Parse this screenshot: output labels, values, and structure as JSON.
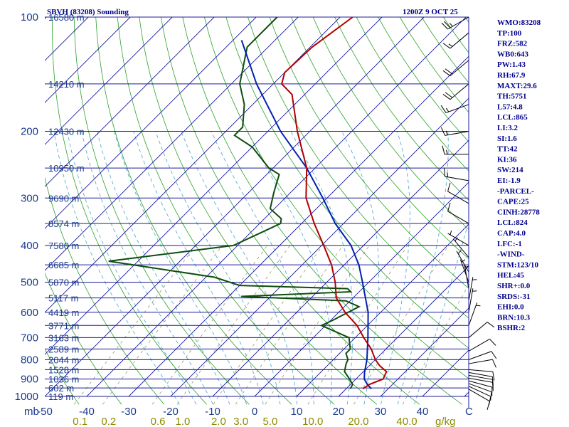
{
  "colors": {
    "isobar": "#1c1c9a",
    "isotherm": "#1c1c9a",
    "dry_adiabat": "#2aa12a",
    "moist_adiabat": "#5aaed0",
    "mixing_ratio": "#9a9a6a",
    "temperature": "#b00000",
    "dewpoint": "#0d4d0d",
    "parcel": "#0020b0",
    "text": "#00008b"
  },
  "chart_data": {
    "type": "skew-t sounding",
    "title": "SBVH (83208) Sounding",
    "datetime": "1200Z  9 OCT 25",
    "y_axis_unit": "mb",
    "x_axis_unit": "C",
    "mixing_ratio_unit": "g/kg",
    "pressure_levels": [
      {
        "p": 100,
        "label": "100"
      },
      {
        "p": 200,
        "label": "200"
      },
      {
        "p": 300,
        "label": "300"
      },
      {
        "p": 400,
        "label": "400"
      },
      {
        "p": 500,
        "label": "500"
      },
      {
        "p": 600,
        "label": "600"
      },
      {
        "p": 700,
        "label": "700"
      },
      {
        "p": 800,
        "label": "800"
      },
      {
        "p": 900,
        "label": "900"
      },
      {
        "p": 1000,
        "label": "1000"
      }
    ],
    "height_labels": [
      {
        "p": 100,
        "label": "16580 m"
      },
      {
        "p": 150,
        "label": "14210 m"
      },
      {
        "p": 200,
        "label": "12430 m"
      },
      {
        "p": 250,
        "label": "10950 m"
      },
      {
        "p": 300,
        "label": "9690 m"
      },
      {
        "p": 350,
        "label": "8574 m"
      },
      {
        "p": 400,
        "label": "7580 m"
      },
      {
        "p": 450,
        "label": "6685 m"
      },
      {
        "p": 500,
        "label": "5870 m"
      },
      {
        "p": 550,
        "label": "5117 m"
      },
      {
        "p": 600,
        "label": "4419 m"
      },
      {
        "p": 650,
        "label": "3771 m"
      },
      {
        "p": 700,
        "label": "3163 m"
      },
      {
        "p": 750,
        "label": "2589 m"
      },
      {
        "p": 800,
        "label": "2044 m"
      },
      {
        "p": 850,
        "label": "1528 m"
      },
      {
        "p": 900,
        "label": "1036 m"
      },
      {
        "p": 950,
        "label": "602 m"
      },
      {
        "p": 1000,
        "label": "119 m"
      }
    ],
    "temp_ticks": [
      {
        "t": -50,
        "label": "-50"
      },
      {
        "t": -40,
        "label": "-40"
      },
      {
        "t": -30,
        "label": "-30"
      },
      {
        "t": -20,
        "label": "-20"
      },
      {
        "t": -10,
        "label": "-10"
      },
      {
        "t": 0,
        "label": "0"
      },
      {
        "t": 10,
        "label": "10"
      },
      {
        "t": 20,
        "label": "20"
      },
      {
        "t": 30,
        "label": "30"
      },
      {
        "t": 40,
        "label": "40"
      }
    ],
    "mixing_ratio_ticks": [
      {
        "w": 0.1,
        "label": "0.1"
      },
      {
        "w": 0.2,
        "label": "0.2"
      },
      {
        "w": 0.6,
        "label": "0.6"
      },
      {
        "w": 1.0,
        "label": "1.0"
      },
      {
        "w": 2.0,
        "label": "2.0"
      },
      {
        "w": 3.0,
        "label": "3.0"
      },
      {
        "w": 5.0,
        "label": "5.0"
      },
      {
        "w": 10.0,
        "label": "10.0"
      },
      {
        "w": 20.0,
        "label": "20.0"
      },
      {
        "w": 40.0,
        "label": "40.0"
      }
    ],
    "temperature_profile": [
      {
        "p": 955,
        "t": 24.0
      },
      {
        "p": 930,
        "t": 24.5
      },
      {
        "p": 900,
        "t": 26.5
      },
      {
        "p": 860,
        "t": 25.5
      },
      {
        "p": 830,
        "t": 22.5
      },
      {
        "p": 800,
        "t": 20.0
      },
      {
        "p": 750,
        "t": 16.5
      },
      {
        "p": 700,
        "t": 12.0
      },
      {
        "p": 650,
        "t": 7.5
      },
      {
        "p": 600,
        "t": 1.5
      },
      {
        "p": 550,
        "t": -4.0
      },
      {
        "p": 500,
        "t": -8.0
      },
      {
        "p": 450,
        "t": -13.0
      },
      {
        "p": 400,
        "t": -19.5
      },
      {
        "p": 350,
        "t": -27.0
      },
      {
        "p": 300,
        "t": -35.0
      },
      {
        "p": 250,
        "t": -42.0
      },
      {
        "p": 200,
        "t": -53.0
      },
      {
        "p": 160,
        "t": -63.0
      },
      {
        "p": 150,
        "t": -68.0
      },
      {
        "p": 140,
        "t": -70.0
      },
      {
        "p": 120,
        "t": -69.5
      },
      {
        "p": 100,
        "t": -67.0
      }
    ],
    "dewpoint_profile": [
      {
        "p": 955,
        "t": 21.0
      },
      {
        "p": 930,
        "t": 20.5
      },
      {
        "p": 900,
        "t": 18.5
      },
      {
        "p": 860,
        "t": 15.5
      },
      {
        "p": 820,
        "t": 14.0
      },
      {
        "p": 800,
        "t": 13.5
      },
      {
        "p": 770,
        "t": 11.5
      },
      {
        "p": 750,
        "t": 11.5
      },
      {
        "p": 700,
        "t": 8.5
      },
      {
        "p": 650,
        "t": -1.0
      },
      {
        "p": 630,
        "t": 0.5
      },
      {
        "p": 580,
        "t": 3.5
      },
      {
        "p": 560,
        "t": -1.0
      },
      {
        "p": 545,
        "t": -27.0
      },
      {
        "p": 530,
        "t": -2.0
      },
      {
        "p": 520,
        "t": -3.5
      },
      {
        "p": 510,
        "t": -30.0
      },
      {
        "p": 485,
        "t": -38.0
      },
      {
        "p": 440,
        "t": -67.0
      },
      {
        "p": 400,
        "t": -41.0
      },
      {
        "p": 350,
        "t": -35.0
      },
      {
        "p": 340,
        "t": -36.0
      },
      {
        "p": 320,
        "t": -41.0
      },
      {
        "p": 290,
        "t": -44.0
      },
      {
        "p": 260,
        "t": -47.0
      },
      {
        "p": 250,
        "t": -51.0
      },
      {
        "p": 220,
        "t": -60.0
      },
      {
        "p": 205,
        "t": -67.0
      },
      {
        "p": 195,
        "t": -67.0
      },
      {
        "p": 170,
        "t": -72.0
      },
      {
        "p": 150,
        "t": -78.0
      },
      {
        "p": 120,
        "t": -85.0
      },
      {
        "p": 110,
        "t": -85.0
      },
      {
        "p": 100,
        "t": -85.0
      }
    ],
    "parcel_profile": [
      {
        "p": 955,
        "t": 26.0
      },
      {
        "p": 930,
        "t": 24.0
      },
      {
        "p": 900,
        "t": 22.0
      },
      {
        "p": 865,
        "t": 20.5
      },
      {
        "p": 800,
        "t": 18.0
      },
      {
        "p": 700,
        "t": 13.0
      },
      {
        "p": 600,
        "t": 7.0
      },
      {
        "p": 500,
        "t": -1.5
      },
      {
        "p": 450,
        "t": -6.5
      },
      {
        "p": 400,
        "t": -13.0
      },
      {
        "p": 350,
        "t": -22.0
      },
      {
        "p": 300,
        "t": -31.0
      },
      {
        "p": 250,
        "t": -42.0
      },
      {
        "p": 200,
        "t": -57.0
      },
      {
        "p": 150,
        "t": -74.0
      },
      {
        "p": 115,
        "t": -88.0
      }
    ],
    "wind_barbs": [
      {
        "p": 957,
        "dir": 120,
        "spd": 10
      },
      {
        "p": 940,
        "dir": 115,
        "spd": 10
      },
      {
        "p": 925,
        "dir": 110,
        "spd": 10
      },
      {
        "p": 910,
        "dir": 105,
        "spd": 10
      },
      {
        "p": 895,
        "dir": 100,
        "spd": 10
      },
      {
        "p": 880,
        "dir": 100,
        "spd": 10
      },
      {
        "p": 865,
        "dir": 100,
        "spd": 10
      },
      {
        "p": 850,
        "dir": 95,
        "spd": 10
      },
      {
        "p": 820,
        "dir": 80,
        "spd": 10
      },
      {
        "p": 800,
        "dir": 70,
        "spd": 10
      },
      {
        "p": 760,
        "dir": 60,
        "spd": 10
      },
      {
        "p": 700,
        "dir": 50,
        "spd": 10
      },
      {
        "p": 650,
        "dir": 20,
        "spd": 5
      },
      {
        "p": 600,
        "dir": 10,
        "spd": 5
      },
      {
        "p": 560,
        "dir": 10,
        "spd": 5
      },
      {
        "p": 520,
        "dir": 350,
        "spd": 5
      },
      {
        "p": 500,
        "dir": 340,
        "spd": 5
      },
      {
        "p": 470,
        "dir": 330,
        "spd": 5
      },
      {
        "p": 430,
        "dir": 320,
        "spd": 5
      },
      {
        "p": 400,
        "dir": 300,
        "spd": 5
      },
      {
        "p": 350,
        "dir": 300,
        "spd": 10
      },
      {
        "p": 310,
        "dir": 300,
        "spd": 10
      },
      {
        "p": 270,
        "dir": 280,
        "spd": 15
      },
      {
        "p": 230,
        "dir": 270,
        "spd": 15
      },
      {
        "p": 200,
        "dir": 260,
        "spd": 15
      },
      {
        "p": 170,
        "dir": 250,
        "spd": 15
      },
      {
        "p": 150,
        "dir": 230,
        "spd": 20
      },
      {
        "p": 130,
        "dir": 230,
        "spd": 20
      },
      {
        "p": 110,
        "dir": 230,
        "spd": 15
      },
      {
        "p": 100,
        "dir": 240,
        "spd": 25
      }
    ]
  },
  "indices": [
    "WMO:83208",
    "TP:100",
    "FRZ:582",
    "WB0:643",
    "PW:1.43",
    "RH:67.9",
    "MAXT:29.6",
    "TH:5751",
    "L57:4.8",
    "LCL:865",
    "LI:3.2",
    "SI:1.6",
    "TT:42",
    "KI:36",
    "SW:214",
    "EI:-1.9",
    "-PARCEL-",
    "CAPE:25",
    "CINH:28778",
    "LCL:824",
    "CAP:4.0",
    "LFC:-1",
    "-WIND-",
    "STM:123/10",
    "HEL:45",
    "SHR+:0.0",
    "SRDS:-31",
    "EHI:0.0",
    "BRN:10.3",
    "BSHR:2"
  ]
}
